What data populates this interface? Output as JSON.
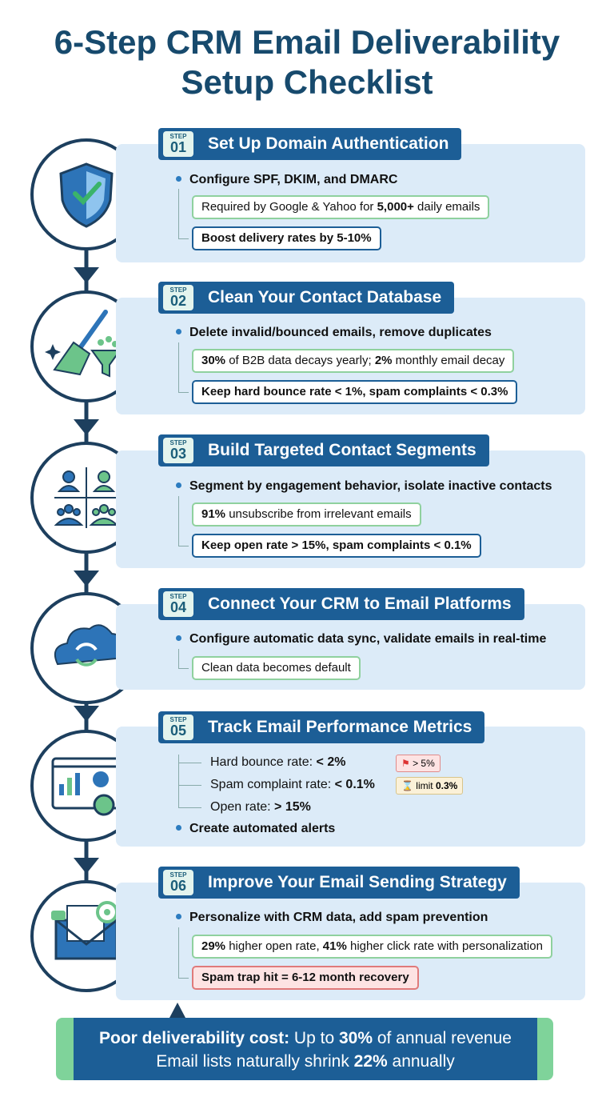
{
  "title": "6-Step CRM Email Deliverability Setup Checklist",
  "steps": [
    {
      "label": "STEP",
      "number": "01",
      "title": "Set Up Domain Authentication",
      "bullet": "Configure SPF, DKIM, and DMARC",
      "notes": [
        [
          "Required by Google & Yahoo for ",
          "5,000+",
          " daily emails"
        ],
        [
          "Boost delivery rates by 5-10%"
        ]
      ]
    },
    {
      "label": "STEP",
      "number": "02",
      "title": "Clean Your Contact Database",
      "bullet": "Delete invalid/bounced emails, remove duplicates",
      "notes": [
        [
          "30%",
          " of B2B data decays yearly; ",
          "2%",
          " monthly email decay"
        ],
        [
          "Keep hard bounce rate < 1%, spam complaints < 0.3%"
        ]
      ]
    },
    {
      "label": "STEP",
      "number": "03",
      "title": "Build Targeted Contact Segments",
      "bullet": "Segment by engagement behavior, isolate inactive contacts",
      "notes": [
        [
          "91%",
          " unsubscribe from irrelevant emails"
        ],
        [
          "Keep open rate > 15%, spam complaints < 0.1%"
        ]
      ]
    },
    {
      "label": "STEP",
      "number": "04",
      "title": "Connect Your CRM to Email Platforms",
      "bullet": "Configure automatic data sync, validate emails in real-time",
      "notes": [
        [
          "Clean data becomes default"
        ]
      ]
    },
    {
      "label": "STEP",
      "number": "05",
      "title": "Track Email Performance Metrics",
      "bullet": "Create automated alerts",
      "metrics": [
        {
          "label": "Hard bounce rate: ",
          "value": "< 2%",
          "badge": [
            "> 5%"
          ]
        },
        {
          "label": "Spam complaint rate: ",
          "value": "< 0.1%",
          "badge": [
            "limit ",
            "0.3%"
          ]
        },
        {
          "label": "Open rate: ",
          "value": "> 15%"
        }
      ]
    },
    {
      "label": "STEP",
      "number": "06",
      "title": "Improve Your Email Sending Strategy",
      "bullet": "Personalize with CRM data, add spam prevention",
      "notes": [
        [
          "29%",
          " higher open rate, ",
          "41%",
          " higher click rate with personalization"
        ],
        [
          "Spam trap hit = 6-12 month recovery"
        ]
      ]
    }
  ],
  "footer": [
    [
      "Poor deliverability cost:",
      " Up to ",
      "30%",
      " of annual revenue"
    ],
    [
      "Email lists naturally shrink ",
      "22%",
      " annually"
    ]
  ]
}
